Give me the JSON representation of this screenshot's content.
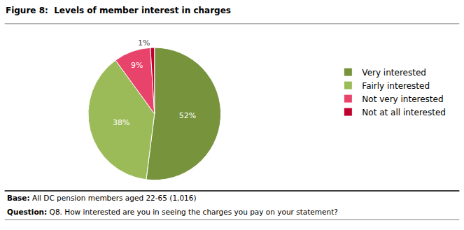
{
  "chart_data": {
    "type": "pie",
    "title": "Figure 8:  Levels of member interest in charges",
    "categories": [
      "Very interested",
      "Fairly interested",
      "Not very interested",
      "Not at all interested"
    ],
    "values": [
      52,
      38,
      9,
      1
    ],
    "value_labels": [
      "52%",
      "38%",
      "9%",
      "1%"
    ],
    "colors": [
      "#77933c",
      "#9bbb59",
      "#e8436b",
      "#c0002f"
    ],
    "data_labels": true,
    "legend": "right",
    "annotations": [
      "Base: All DC pension members aged 22-65 (1,016)",
      "Question: Q8. How interested are you in seeing the charges you pay on your statement?"
    ]
  }
}
